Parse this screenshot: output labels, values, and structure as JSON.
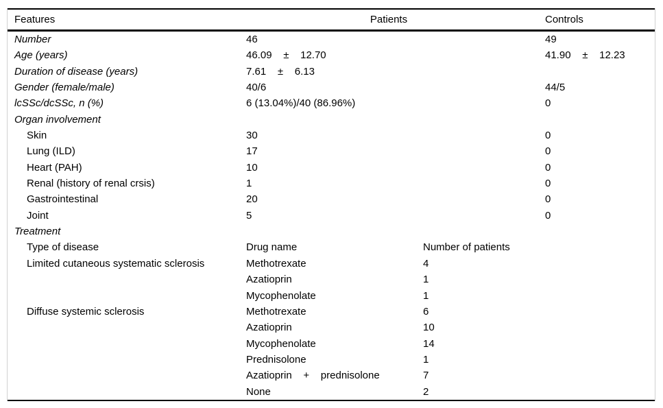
{
  "colors": {
    "background": "#ffffff",
    "text": "#000000",
    "rule": "#000000",
    "frame_border": "#d0d0d0"
  },
  "table": {
    "header": {
      "features": "Features",
      "patients": "Patients",
      "controls": "Controls"
    },
    "rows": [
      {
        "label": "Number",
        "italic": true,
        "indent": 0,
        "patients": "46",
        "patients2": "",
        "controls": "49"
      },
      {
        "label": "Age (years)",
        "italic": true,
        "indent": 0,
        "patients": "46.09    ±    12.70",
        "patients2": "",
        "controls": "41.90    ±    12.23"
      },
      {
        "label": "Duration of disease (years)",
        "italic": true,
        "indent": 0,
        "patients": "7.61    ±    6.13",
        "patients2": "",
        "controls": ""
      },
      {
        "label": "Gender (female/male)",
        "italic": true,
        "indent": 0,
        "patients": "40/6",
        "patients2": "",
        "controls": "44/5"
      },
      {
        "label": "lcSSc/dcSSc, n (%)",
        "italic": true,
        "indent": 0,
        "patients": "6 (13.04%)/40 (86.96%)",
        "patients2": "",
        "controls": "0"
      },
      {
        "label": "Organ involvement",
        "italic": true,
        "indent": 0,
        "patients": "",
        "patients2": "",
        "controls": ""
      },
      {
        "label": "Skin",
        "italic": false,
        "indent": 1,
        "patients": "30",
        "patients2": "",
        "controls": "0"
      },
      {
        "label": "Lung (ILD)",
        "italic": false,
        "indent": 1,
        "patients": "17",
        "patients2": "",
        "controls": "0"
      },
      {
        "label": "Heart (PAH)",
        "italic": false,
        "indent": 1,
        "patients": "10",
        "patients2": "",
        "controls": "0"
      },
      {
        "label": "Renal (history of renal crsis)",
        "italic": false,
        "indent": 1,
        "patients": "1",
        "patients2": "",
        "controls": "0"
      },
      {
        "label": "Gastrointestinal",
        "italic": false,
        "indent": 1,
        "patients": "20",
        "patients2": "",
        "controls": "0"
      },
      {
        "label": "Joint",
        "italic": false,
        "indent": 1,
        "patients": "5",
        "patients2": "",
        "controls": "0"
      },
      {
        "label": "Treatment",
        "italic": true,
        "indent": 0,
        "patients": "",
        "patients2": "",
        "controls": ""
      },
      {
        "label": "Type of disease",
        "italic": false,
        "indent": 1,
        "patients": "Drug name",
        "patients2": "Number of patients",
        "controls": ""
      },
      {
        "label": "Limited cutaneous systematic sclerosis",
        "italic": false,
        "indent": 1,
        "patients": "Methotrexate",
        "patients2": "4",
        "controls": ""
      },
      {
        "label": "",
        "italic": false,
        "indent": 1,
        "patients": "Azatioprin",
        "patients2": "1",
        "controls": ""
      },
      {
        "label": "",
        "italic": false,
        "indent": 1,
        "patients": "Mycophenolate",
        "patients2": "1",
        "controls": ""
      },
      {
        "label": "Diffuse systemic sclerosis",
        "italic": false,
        "indent": 1,
        "patients": "Methotrexate",
        "patients2": "6",
        "controls": ""
      },
      {
        "label": "",
        "italic": false,
        "indent": 1,
        "patients": "Azatioprin",
        "patients2": "10",
        "controls": ""
      },
      {
        "label": "",
        "italic": false,
        "indent": 1,
        "patients": "Mycophenolate",
        "patients2": "14",
        "controls": ""
      },
      {
        "label": "",
        "italic": false,
        "indent": 1,
        "patients": "Prednisolone",
        "patients2": "1",
        "controls": ""
      },
      {
        "label": "",
        "italic": false,
        "indent": 1,
        "patients": "Azatioprin    +    prednisolone",
        "patients2": "7",
        "controls": ""
      },
      {
        "label": "",
        "italic": false,
        "indent": 1,
        "patients": "None",
        "patients2": "2",
        "controls": ""
      }
    ]
  }
}
